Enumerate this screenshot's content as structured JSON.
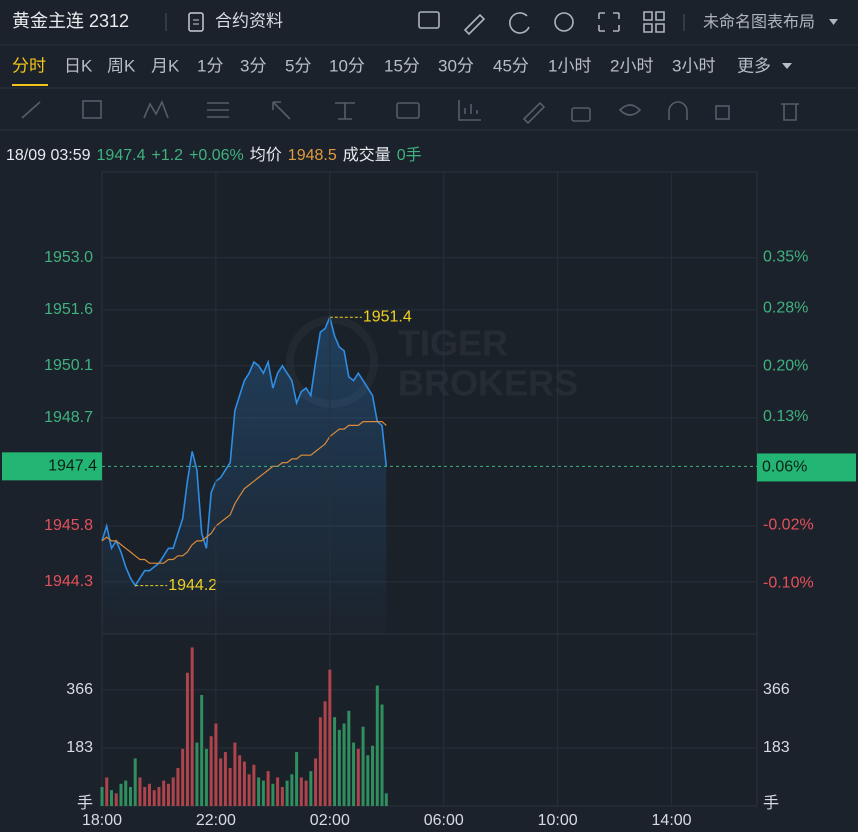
{
  "header": {
    "title": "黄金主连 2312",
    "contract_info": "合约资料",
    "layout_name": "未命名图表布局"
  },
  "periods": {
    "items": [
      "分时",
      "日K",
      "周K",
      "月K",
      "1分",
      "3分",
      "5分",
      "10分",
      "15分",
      "30分",
      "45分",
      "1小时",
      "2小时",
      "3小时",
      "更多"
    ],
    "active_index": 0
  },
  "quote": {
    "time": "18/09 03:59",
    "price": "1947.4",
    "change": "+1.2",
    "change_pct": "+0.06%",
    "avg_label": "均价",
    "avg": "1948.5",
    "volume_label": "成交量",
    "volume": "0手"
  },
  "chart_data": [
    {
      "type": "line",
      "x": [
        "18:00",
        "18:10",
        "18:20",
        "18:30",
        "18:40",
        "18:50",
        "19:00",
        "19:10",
        "19:20",
        "19:30",
        "19:40",
        "19:50",
        "20:00",
        "20:10",
        "20:20",
        "20:30",
        "20:40",
        "20:50",
        "21:00",
        "21:10",
        "21:20",
        "21:30",
        "21:40",
        "21:50",
        "22:00",
        "22:10",
        "22:20",
        "22:30",
        "22:40",
        "22:50",
        "23:00",
        "23:10",
        "23:20",
        "23:30",
        "23:40",
        "23:50",
        "00:00",
        "00:10",
        "00:20",
        "00:30",
        "00:40",
        "00:50",
        "01:00",
        "01:10",
        "01:20",
        "01:30",
        "01:40",
        "01:50",
        "02:00",
        "02:10",
        "02:20",
        "02:30",
        "02:40",
        "02:50",
        "03:00",
        "03:10",
        "03:20",
        "03:30",
        "03:40",
        "03:50",
        "03:59"
      ],
      "series": [
        {
          "color": "#2f8de4",
          "values": [
            1945.4,
            1945.8,
            1945.2,
            1945.4,
            1945.1,
            1944.7,
            1944.4,
            1944.2,
            1944.4,
            1944.6,
            1944.6,
            1944.7,
            1944.8,
            1945.0,
            1945.2,
            1945.2,
            1945.6,
            1946.0,
            1947.0,
            1947.8,
            1947.3,
            1945.6,
            1945.2,
            1946.7,
            1947.0,
            1947.1,
            1947.3,
            1947.5,
            1948.9,
            1949.3,
            1949.7,
            1949.9,
            1950.2,
            1950.1,
            1949.9,
            1950.2,
            1949.5,
            1949.9,
            1950.1,
            1949.9,
            1949.7,
            1949.1,
            1949.4,
            1949.5,
            1949.3,
            1950.2,
            1951.0,
            1951.1,
            1951.4,
            1950.9,
            1950.6,
            1950.5,
            1949.8,
            1949.7,
            1949.9,
            1949.7,
            1949.5,
            1949.3,
            1948.6,
            1948.5,
            1947.4
          ]
        },
        {
          "color": "#d98b3a",
          "values": [
            1945.4,
            1945.5,
            1945.4,
            1945.4,
            1945.3,
            1945.2,
            1945.1,
            1945.0,
            1944.9,
            1944.9,
            1944.8,
            1944.8,
            1944.8,
            1944.8,
            1944.9,
            1944.9,
            1945.0,
            1945.0,
            1945.1,
            1945.3,
            1945.4,
            1945.4,
            1945.5,
            1945.6,
            1945.8,
            1945.9,
            1946.0,
            1946.1,
            1946.4,
            1946.6,
            1946.8,
            1946.9,
            1947.0,
            1947.1,
            1947.2,
            1947.3,
            1947.4,
            1947.4,
            1947.5,
            1947.5,
            1947.6,
            1947.6,
            1947.7,
            1947.7,
            1947.7,
            1947.8,
            1947.9,
            1948.0,
            1948.2,
            1948.3,
            1948.4,
            1948.4,
            1948.5,
            1948.5,
            1948.5,
            1948.6,
            1948.6,
            1948.6,
            1948.6,
            1948.6,
            1948.5
          ]
        }
      ],
      "xlim": [
        "18:00",
        "17:00"
      ],
      "ylim": [
        1942.9,
        1955.3
      ],
      "yticks": [
        {
          "value": 1953.0,
          "label": "1953.0"
        },
        {
          "value": 1951.6,
          "label": "1951.6"
        },
        {
          "value": 1950.1,
          "label": "1950.1"
        },
        {
          "value": 1948.7,
          "label": "1948.7"
        },
        {
          "value": 1945.8,
          "label": "1945.8"
        },
        {
          "value": 1944.3,
          "label": "1944.3"
        }
      ],
      "y2lim": [
        -0.17,
        0.468
      ],
      "y2ticks": [
        {
          "value": 0.35,
          "label": "0.35%"
        },
        {
          "value": 0.28,
          "label": "0.28%"
        },
        {
          "value": 0.2,
          "label": "0.20%"
        },
        {
          "value": 0.13,
          "label": "0.13%"
        },
        {
          "value": -0.02,
          "label": "-0.02%"
        },
        {
          "value": -0.1,
          "label": "-0.10%"
        }
      ],
      "current_price": 1947.4,
      "current_pct": {
        "value": 0.06,
        "label": "0.06%"
      },
      "annotations": [
        {
          "x": "02:00",
          "value": 1951.4
        },
        {
          "x": "19:10",
          "value": 1944.2
        }
      ],
      "watermark": [
        "TIGER",
        "BROKERS"
      ],
      "grid": true,
      "up_color": "#e5505a",
      "down_color": "#3fb27f"
    },
    {
      "type": "bar",
      "x": [
        "18:00",
        "18:10",
        "18:20",
        "18:30",
        "18:40",
        "18:50",
        "19:00",
        "19:10",
        "19:20",
        "19:30",
        "19:40",
        "19:50",
        "20:00",
        "20:10",
        "20:20",
        "20:30",
        "20:40",
        "20:50",
        "21:00",
        "21:10",
        "21:20",
        "21:30",
        "21:40",
        "21:50",
        "22:00",
        "22:10",
        "22:20",
        "22:30",
        "22:40",
        "22:50",
        "23:00",
        "23:10",
        "23:20",
        "23:30",
        "23:40",
        "23:50",
        "00:00",
        "00:10",
        "00:20",
        "00:30",
        "00:40",
        "00:50",
        "01:00",
        "01:10",
        "01:20",
        "01:30",
        "01:40",
        "01:50",
        "02:00",
        "02:10",
        "02:20",
        "02:30",
        "02:40",
        "02:50",
        "03:00",
        "03:10",
        "03:20",
        "03:30",
        "03:40",
        "03:50",
        "03:59"
      ],
      "values": [
        60,
        90,
        50,
        40,
        70,
        80,
        60,
        150,
        90,
        60,
        70,
        50,
        60,
        80,
        70,
        90,
        120,
        180,
        420,
        500,
        200,
        350,
        180,
        220,
        260,
        150,
        170,
        120,
        200,
        160,
        140,
        100,
        130,
        90,
        80,
        110,
        70,
        90,
        60,
        80,
        100,
        170,
        90,
        80,
        110,
        150,
        280,
        330,
        430,
        280,
        240,
        260,
        300,
        200,
        180,
        250,
        160,
        190,
        380,
        320,
        40
      ],
      "xlim": [
        "18:00",
        "17:00"
      ],
      "xticks": [
        "18:00",
        "22:00",
        "02:00",
        "06:00",
        "10:00",
        "14:00"
      ],
      "ylim": [
        0,
        536
      ],
      "yticks": [
        183,
        366
      ],
      "y_unit": "手",
      "grid": true,
      "up_color": "#b0444c",
      "down_color": "#2f8f5f"
    }
  ]
}
